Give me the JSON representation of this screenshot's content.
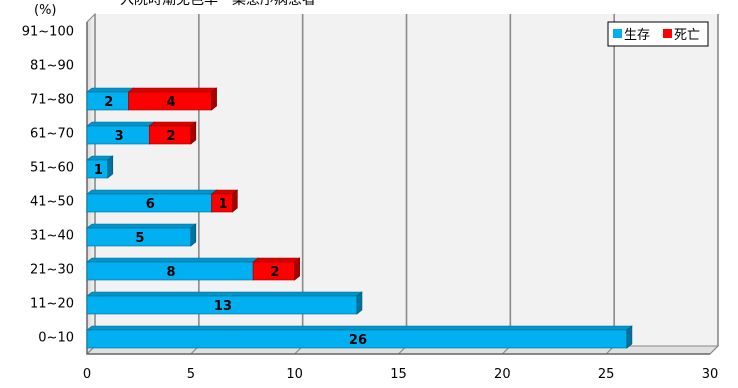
{
  "chart_data": {
    "type": "bar",
    "orientation": "horizontal",
    "stacked": true,
    "title": "入院時潮免色率・集患序病患者",
    "unit_label": "(%)",
    "categories": [
      "0~10",
      "11~20",
      "21~30",
      "31~40",
      "41~50",
      "51~60",
      "61~70",
      "71~80",
      "81~90",
      "91~100"
    ],
    "series": [
      {
        "name": "生存",
        "color": "#00B0F0",
        "values": [
          26,
          13,
          8,
          5,
          6,
          1,
          3,
          2,
          0,
          0
        ]
      },
      {
        "name": "死亡",
        "color": "#FF0000",
        "values": [
          0,
          0,
          2,
          0,
          1,
          0,
          2,
          4,
          0,
          0
        ]
      }
    ],
    "xlim": [
      0,
      30
    ],
    "xticks": [
      0,
      5,
      10,
      15,
      20,
      25,
      30
    ],
    "grid": true,
    "legend_position": "top-right",
    "data_labels": true
  }
}
